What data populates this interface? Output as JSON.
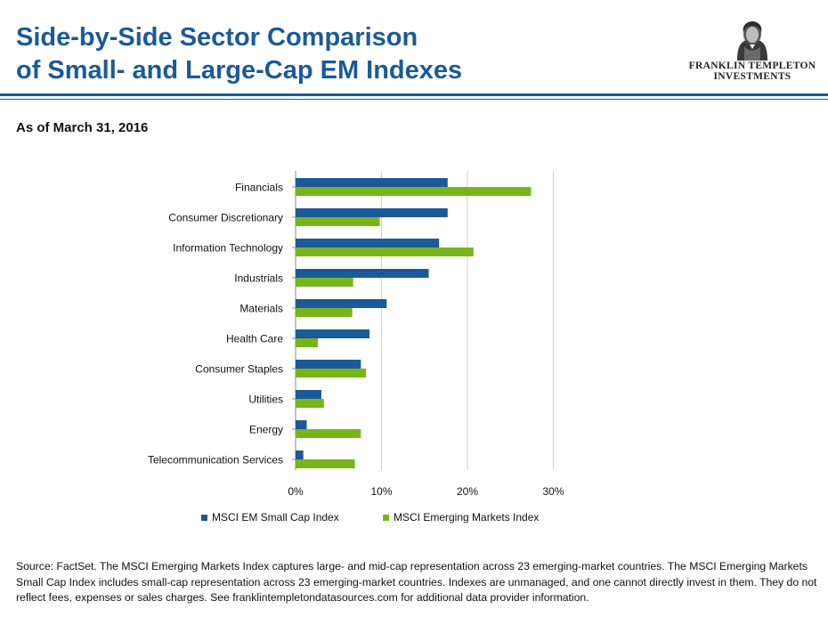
{
  "header": {
    "title_line1": "Side-by-Side Sector Comparison",
    "title_line2": "of Small- and Large-Cap EM Indexes",
    "logo_text_line1": "FRANKLIN TEMPLETON",
    "logo_text_line2": "INVESTMENTS",
    "as_of": "As of March 31, 2016"
  },
  "colors": {
    "title": "#1b5a98",
    "small_cap": "#1b5a98",
    "emerging": "#78b51a",
    "gridline": "#d0d0d0"
  },
  "chart_data": {
    "type": "bar",
    "orientation": "horizontal",
    "categories": [
      "Financials",
      "Consumer Discretionary",
      "Information Technology",
      "Industrials",
      "Materials",
      "Health Care",
      "Consumer Staples",
      "Utilities",
      "Energy",
      "Telecommunication Services"
    ],
    "series": [
      {
        "name": "MSCI EM Small Cap Index",
        "values": [
          17.7,
          17.7,
          16.7,
          15.5,
          10.6,
          8.6,
          7.6,
          3.0,
          1.3,
          0.9
        ]
      },
      {
        "name": "MSCI Emerging Markets Index",
        "values": [
          27.4,
          9.8,
          20.7,
          6.7,
          6.6,
          2.6,
          8.2,
          3.3,
          7.6,
          6.9
        ]
      }
    ],
    "xlim": [
      0,
      30
    ],
    "xticks": [
      "0%",
      "10%",
      "20%",
      "30%"
    ],
    "grid": true,
    "legend_position": "bottom"
  },
  "footer": {
    "source_text": "Source: FactSet. The MSCI Emerging Markets Index captures large- and mid-cap representation across 23 emerging-market countries. The MSCI Emerging Markets Small Cap Index includes small-cap representation across 23 emerging-market countries. Indexes are unmanaged, and one cannot directly invest in them. They do not reflect fees, expenses or sales charges. See franklintempletondatasources.com for additional data provider information."
  }
}
